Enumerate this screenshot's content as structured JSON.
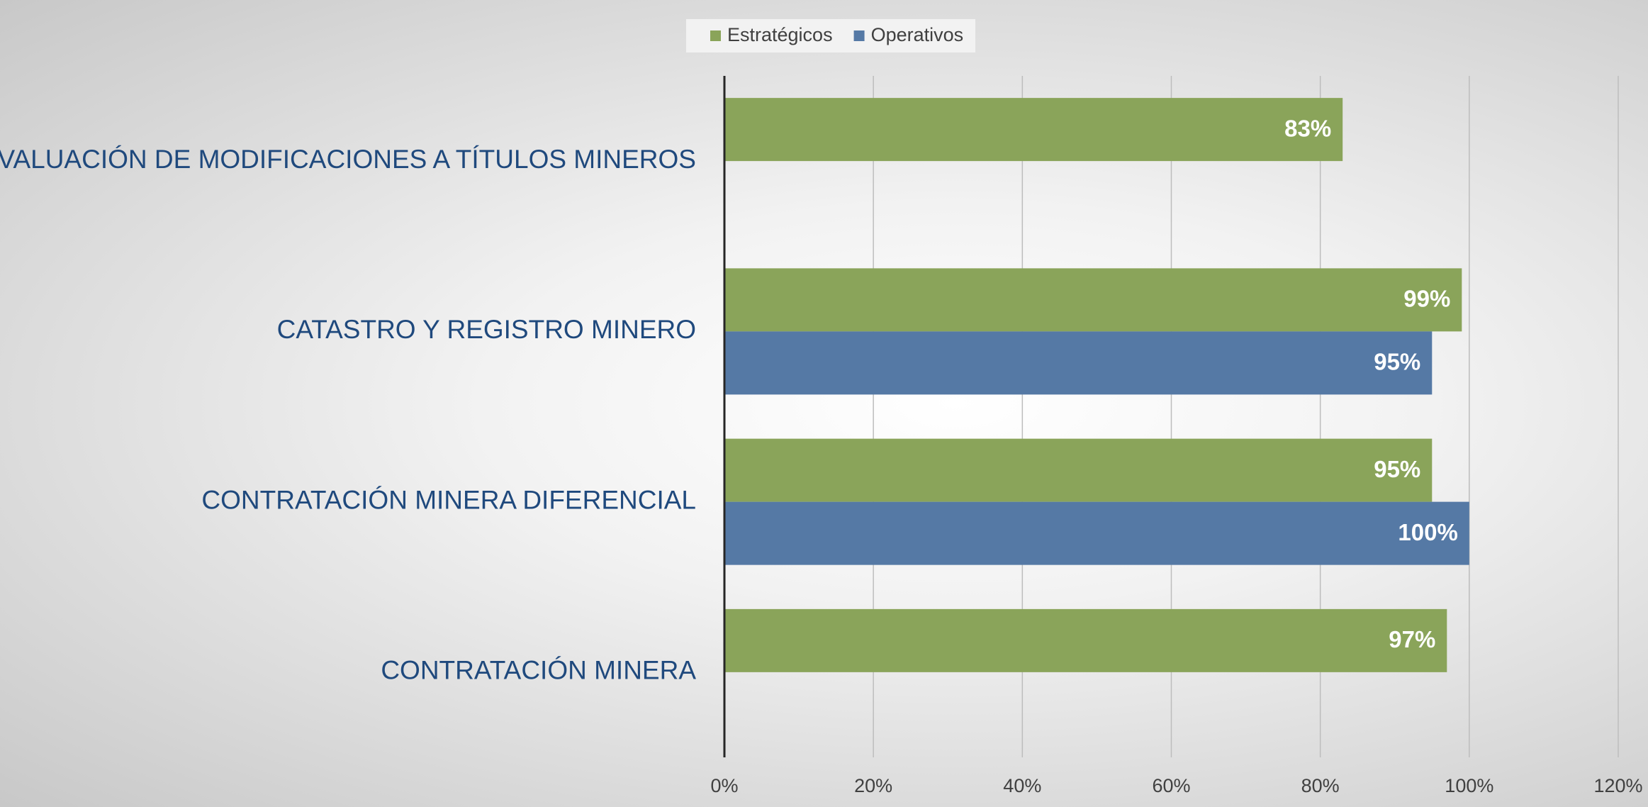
{
  "chart_data": {
    "type": "barh",
    "categories": [
      "EVALUACIÓN DE MODIFICACIONES A TÍTULOS MINEROS",
      "CATASTRO Y REGISTRO MINERO",
      "CONTRATACIÓN MINERA DIFERENCIAL",
      "CONTRATACIÓN MINERA"
    ],
    "series": [
      {
        "name": "Estratégicos",
        "color": "#8aa45a",
        "values": [
          83,
          99,
          95,
          97
        ],
        "value_labels": [
          "83%",
          "99%",
          "95%",
          "97%"
        ]
      },
      {
        "name": "Operativos",
        "color": "#5579a5",
        "values": [
          null,
          95,
          100,
          null
        ],
        "value_labels": [
          null,
          "95%",
          "100%",
          null
        ]
      }
    ],
    "xlim": [
      0,
      120
    ],
    "xticks": [
      {
        "value": 0,
        "label": "0%"
      },
      {
        "value": 20,
        "label": "20%"
      },
      {
        "value": 40,
        "label": "40%"
      },
      {
        "value": 60,
        "label": "60%"
      },
      {
        "value": 80,
        "label": "80%"
      },
      {
        "value": 100,
        "label": "100%"
      },
      {
        "value": 120,
        "label": "120%"
      }
    ],
    "grid": true,
    "legend": "top"
  }
}
